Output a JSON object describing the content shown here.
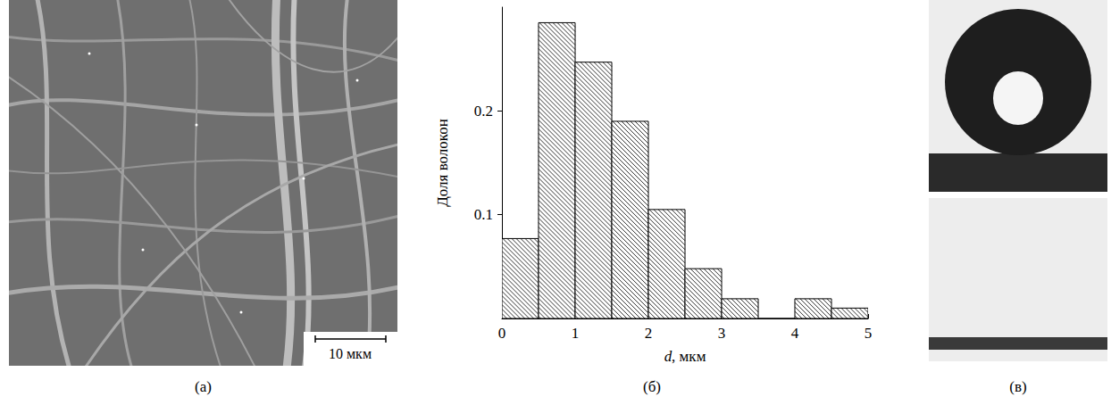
{
  "chart_data": {
    "type": "histogram",
    "bins": [
      0,
      0.5,
      1,
      1.5,
      2,
      2.5,
      3,
      3.5,
      4,
      4.5,
      5
    ],
    "values": [
      0.077,
      0.285,
      0.247,
      0.19,
      0.105,
      0.048,
      0.019,
      0,
      0.019,
      0.01
    ],
    "xlabel": "d, мкм",
    "ylabel": "Доля волокон",
    "xlim": [
      0,
      5
    ],
    "xticks": [
      0,
      1,
      2,
      3,
      4,
      5
    ],
    "ylim": [
      0,
      0.3
    ],
    "yticks": [
      0.1,
      0.2
    ],
    "color": "#000000",
    "grid": false
  },
  "panels": [
    {
      "label": "(а)",
      "scale_bar": "10 мкм"
    },
    {
      "label": "(б)"
    },
    {
      "label": "(в)"
    }
  ]
}
